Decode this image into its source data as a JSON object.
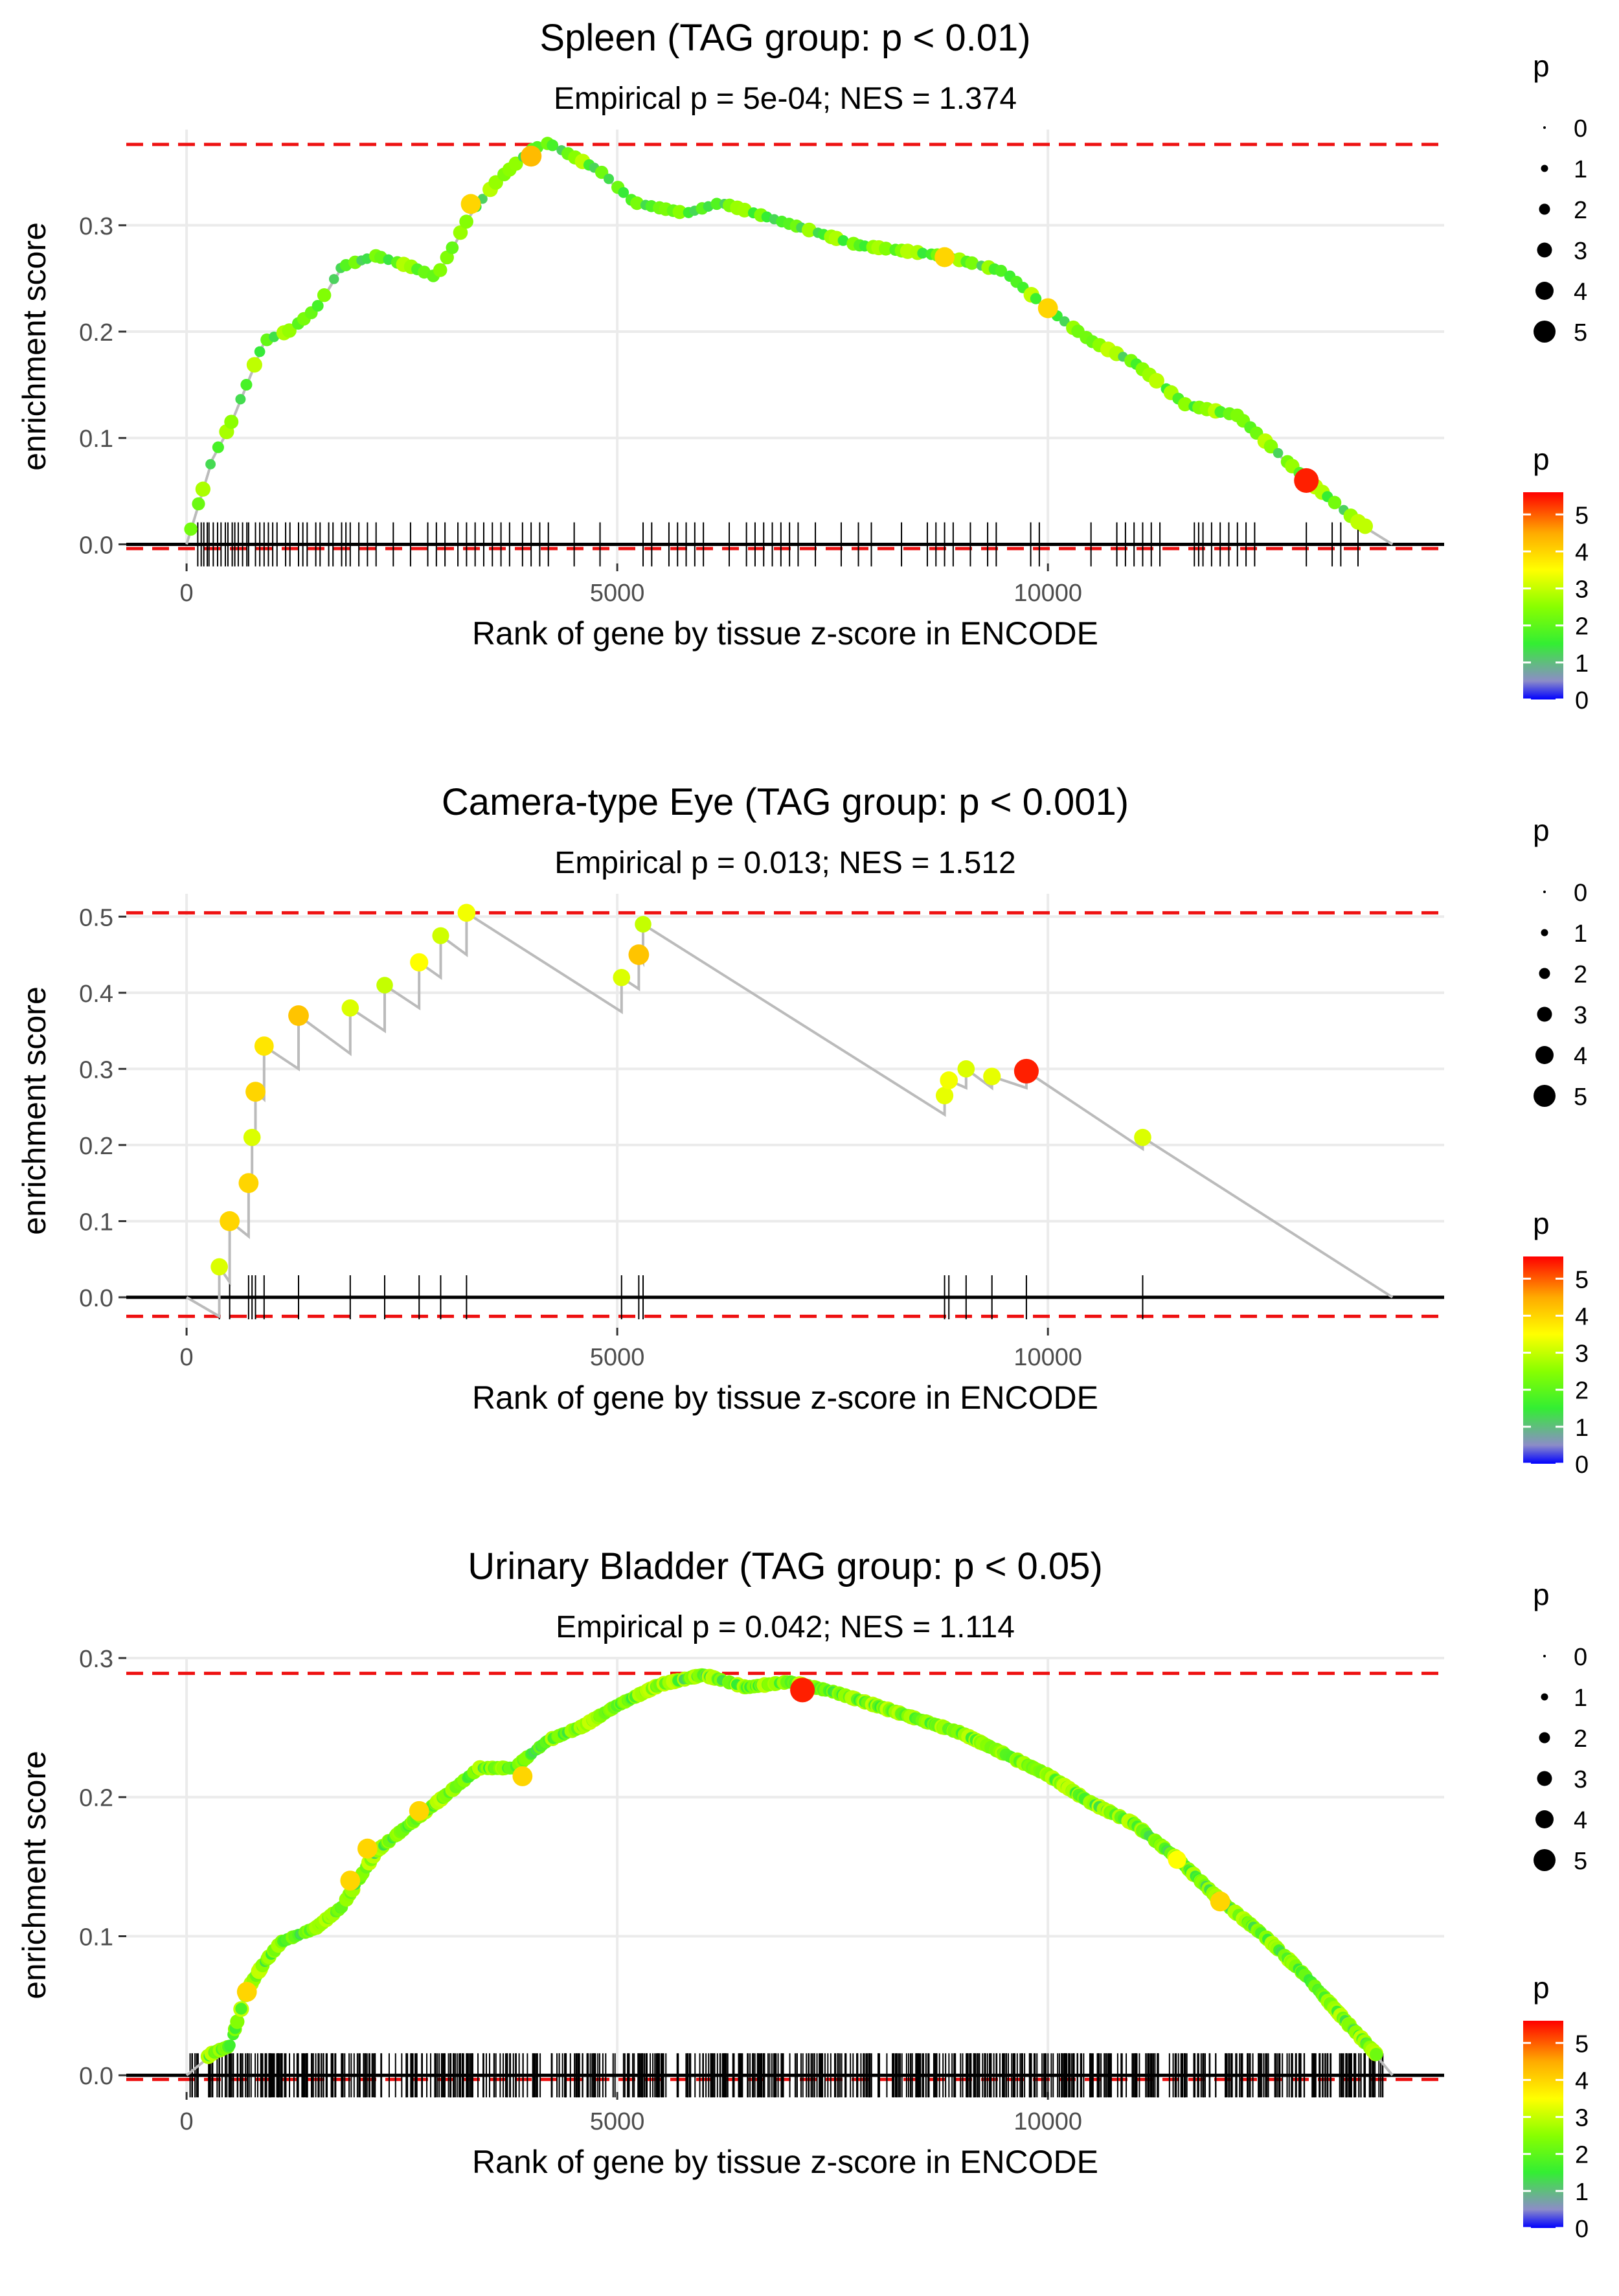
{
  "colors": {
    "line": "#bbbbbb",
    "dash": "#ee1111",
    "grid": "#ebebeb",
    "tick": "#000000",
    "gradient": [
      "#0000ff",
      "#8c8cc8",
      "#33ee33",
      "#88ff00",
      "#ffff00",
      "#ffaa00",
      "#ff0000"
    ]
  },
  "chart_data": [
    {
      "type": "scatter",
      "title": "Spleen (TAG group: p < 0.01)",
      "subtitle": "Empirical p = 5e-04; NES = 1.374",
      "xlabel": "Rank of gene by tissue z-score in ENCODE",
      "ylabel": "enrichment score",
      "xlim": [
        -700,
        14600
      ],
      "ylim": [
        -0.018,
        0.39
      ],
      "xticks": [
        0,
        5000,
        10000
      ],
      "xtick_labels": [
        "0",
        "5000",
        "10000"
      ],
      "yticks": [
        0.0,
        0.1,
        0.2,
        0.3
      ],
      "ytick_labels": [
        "0.0",
        "0.1",
        "0.2",
        "0.3"
      ],
      "max_es": 0.376,
      "min_es": -0.004,
      "n_genes": 14000,
      "curve": [
        [
          0,
          0
        ],
        [
          150,
          0.04
        ],
        [
          300,
          0.08
        ],
        [
          500,
          0.11
        ],
        [
          700,
          0.15
        ],
        [
          900,
          0.19
        ],
        [
          1200,
          0.2
        ],
        [
          1500,
          0.22
        ],
        [
          1800,
          0.26
        ],
        [
          2200,
          0.27
        ],
        [
          2600,
          0.26
        ],
        [
          2900,
          0.25
        ],
        [
          3300,
          0.31
        ],
        [
          3600,
          0.34
        ],
        [
          4000,
          0.37
        ],
        [
          4200,
          0.376
        ],
        [
          4800,
          0.35
        ],
        [
          5200,
          0.32
        ],
        [
          5800,
          0.31
        ],
        [
          6200,
          0.32
        ],
        [
          7000,
          0.3
        ],
        [
          7800,
          0.28
        ],
        [
          8800,
          0.27
        ],
        [
          9500,
          0.255
        ],
        [
          10000,
          0.22
        ],
        [
          10500,
          0.19
        ],
        [
          11000,
          0.17
        ],
        [
          11600,
          0.13
        ],
        [
          12200,
          0.12
        ],
        [
          13000,
          0.06
        ],
        [
          13600,
          0.02
        ],
        [
          14000,
          0.0
        ]
      ],
      "point_density": 2,
      "highlights": [
        [
          4000,
          0.365,
          4.3
        ],
        [
          3300,
          0.32,
          4.0
        ],
        [
          8800,
          0.27,
          4.0
        ],
        [
          10000,
          0.222,
          4.0
        ],
        [
          13000,
          0.06,
          5.4
        ]
      ],
      "ticks_x": [
        130,
        170,
        200,
        240,
        260,
        310,
        360,
        400,
        450,
        480,
        530,
        560,
        600,
        650,
        700,
        720,
        800,
        850,
        900,
        950,
        1000,
        1050,
        1150,
        1200,
        1300,
        1350,
        1400,
        1500,
        1550,
        1650,
        1700,
        1800,
        1850,
        1900,
        2000,
        2100,
        2200,
        2400,
        2600,
        2800,
        2900,
        3000,
        3150,
        3250,
        3350,
        3450,
        3550,
        3650,
        3750,
        3900,
        4000,
        4100,
        4200,
        4500,
        4800,
        5300,
        5400,
        5600,
        5700,
        5800,
        5900,
        6000,
        6300,
        6500,
        6600,
        6700,
        6800,
        6900,
        7000,
        7100,
        7300,
        7600,
        7800,
        7950,
        8300,
        8600,
        8700,
        8800,
        8900,
        9100,
        9300,
        9400,
        9800,
        9900,
        10500,
        10800,
        10900,
        11000,
        11100,
        11200,
        11300,
        11700,
        11750,
        11800,
        11900,
        12000,
        12100,
        12200,
        12300,
        12400,
        13000,
        13300,
        13400,
        13600
      ],
      "legend_size": {
        "title": "p",
        "labels": [
          "0",
          "1",
          "2",
          "3",
          "4",
          "5"
        ],
        "radii": [
          2,
          5.5,
          8.5,
          11.5,
          14,
          17
        ]
      },
      "legend_color": {
        "title": "p",
        "labels": [
          "5",
          "4",
          "3",
          "2",
          "1",
          "0"
        ],
        "max": 5.6
      }
    },
    {
      "type": "scatter",
      "title": "Camera-type Eye (TAG group: p < 0.001)",
      "subtitle": "Empirical p = 0.013; NES = 1.512",
      "xlabel": "Rank of gene by tissue z-score in ENCODE",
      "ylabel": "enrichment score",
      "xlim": [
        -700,
        14600
      ],
      "ylim": [
        -0.04,
        0.53
      ],
      "xticks": [
        0,
        5000,
        10000
      ],
      "xtick_labels": [
        "0",
        "5000",
        "10000"
      ],
      "yticks": [
        0.0,
        0.1,
        0.2,
        0.3,
        0.4,
        0.5
      ],
      "ytick_labels": [
        "0.0",
        "0.1",
        "0.2",
        "0.3",
        "0.4",
        "0.5"
      ],
      "max_es": 0.505,
      "min_es": -0.025,
      "n_genes": 14000,
      "curve": [
        [
          0,
          0
        ],
        [
          380,
          -0.025
        ],
        [
          380,
          0.04
        ],
        [
          500,
          0.02
        ],
        [
          500,
          0.1
        ],
        [
          720,
          0.08
        ],
        [
          720,
          0.15
        ],
        [
          760,
          0.14
        ],
        [
          760,
          0.21
        ],
        [
          800,
          0.2
        ],
        [
          800,
          0.27
        ],
        [
          900,
          0.26
        ],
        [
          900,
          0.33
        ],
        [
          1300,
          0.3
        ],
        [
          1300,
          0.37
        ],
        [
          1900,
          0.32
        ],
        [
          1900,
          0.38
        ],
        [
          2300,
          0.35
        ],
        [
          2300,
          0.41
        ],
        [
          2700,
          0.38
        ],
        [
          2700,
          0.44
        ],
        [
          2950,
          0.42
        ],
        [
          2950,
          0.475
        ],
        [
          3250,
          0.45
        ],
        [
          3250,
          0.505
        ],
        [
          5050,
          0.375
        ],
        [
          5050,
          0.42
        ],
        [
          5250,
          0.405
        ],
        [
          5250,
          0.45
        ],
        [
          5300,
          0.44
        ],
        [
          5300,
          0.49
        ],
        [
          8800,
          0.24
        ],
        [
          8800,
          0.265
        ],
        [
          8850,
          0.26
        ],
        [
          8850,
          0.285
        ],
        [
          9050,
          0.275
        ],
        [
          9050,
          0.3
        ],
        [
          9350,
          0.275
        ],
        [
          9350,
          0.29
        ],
        [
          9750,
          0.275
        ],
        [
          9750,
          0.297
        ],
        [
          11100,
          0.195
        ],
        [
          11100,
          0.21
        ],
        [
          14000,
          0.0
        ]
      ],
      "point_density": 0,
      "points": [
        [
          380,
          0.04,
          3.2
        ],
        [
          500,
          0.1,
          4.0
        ],
        [
          720,
          0.15,
          4.0
        ],
        [
          760,
          0.21,
          3.2
        ],
        [
          800,
          0.27,
          4.0
        ],
        [
          900,
          0.33,
          3.8
        ],
        [
          1300,
          0.37,
          4.2
        ],
        [
          1900,
          0.38,
          3.2
        ],
        [
          2300,
          0.41,
          3.0
        ],
        [
          2700,
          0.44,
          3.5
        ],
        [
          2950,
          0.475,
          3.1
        ],
        [
          3250,
          0.505,
          3.4
        ],
        [
          5050,
          0.42,
          3.2
        ],
        [
          5250,
          0.45,
          4.2
        ],
        [
          5300,
          0.49,
          3.0
        ],
        [
          8800,
          0.265,
          3.3
        ],
        [
          8850,
          0.285,
          3.4
        ],
        [
          9050,
          0.3,
          3.2
        ],
        [
          9350,
          0.29,
          3.3
        ],
        [
          9750,
          0.297,
          5.4
        ],
        [
          11100,
          0.21,
          3.2
        ]
      ],
      "ticks_x": [
        380,
        500,
        720,
        760,
        800,
        900,
        1300,
        1900,
        2300,
        2700,
        2950,
        3250,
        5050,
        5250,
        5300,
        8800,
        8850,
        9050,
        9350,
        9750,
        11100
      ],
      "legend_size": {
        "title": "p",
        "labels": [
          "0",
          "1",
          "2",
          "3",
          "4",
          "5"
        ],
        "radii": [
          2,
          5.5,
          8.5,
          11.5,
          14,
          17
        ]
      },
      "legend_color": {
        "title": "p",
        "labels": [
          "5",
          "4",
          "3",
          "2",
          "1",
          "0"
        ],
        "max": 5.6
      }
    },
    {
      "type": "scatter",
      "title": "Urinary Bladder (TAG group: p < 0.05)",
      "subtitle": "Empirical p = 0.042; NES = 1.114",
      "xlabel": "Rank of gene by tissue z-score in ENCODE",
      "ylabel": "enrichment score",
      "xlim": [
        -700,
        14600
      ],
      "ylim": [
        -0.012,
        0.3
      ],
      "xticks": [
        0,
        5000,
        10000
      ],
      "xtick_labels": [
        "0",
        "5000",
        "10000"
      ],
      "yticks": [
        0.0,
        0.1,
        0.2,
        0.3
      ],
      "ytick_labels": [
        "0.0",
        "0.1",
        "0.2",
        "0.3"
      ],
      "max_es": 0.289,
      "min_es": -0.003,
      "n_genes": 14000,
      "curve": [
        [
          0,
          0
        ],
        [
          300,
          0.015
        ],
        [
          500,
          0.02
        ],
        [
          700,
          0.06
        ],
        [
          900,
          0.08
        ],
        [
          1100,
          0.095
        ],
        [
          1500,
          0.105
        ],
        [
          1800,
          0.12
        ],
        [
          2200,
          0.16
        ],
        [
          2600,
          0.18
        ],
        [
          3000,
          0.2
        ],
        [
          3400,
          0.22
        ],
        [
          3800,
          0.22
        ],
        [
          4200,
          0.24
        ],
        [
          4600,
          0.25
        ],
        [
          5000,
          0.265
        ],
        [
          5500,
          0.28
        ],
        [
          6000,
          0.287
        ],
        [
          6500,
          0.278
        ],
        [
          7000,
          0.282
        ],
        [
          7500,
          0.275
        ],
        [
          8000,
          0.265
        ],
        [
          8500,
          0.255
        ],
        [
          9000,
          0.245
        ],
        [
          9500,
          0.23
        ],
        [
          10000,
          0.215
        ],
        [
          10500,
          0.195
        ],
        [
          11000,
          0.18
        ],
        [
          11500,
          0.155
        ],
        [
          12000,
          0.125
        ],
        [
          12500,
          0.1
        ],
        [
          13000,
          0.07
        ],
        [
          13500,
          0.035
        ],
        [
          13800,
          0.015
        ],
        [
          14000,
          0.0
        ]
      ],
      "point_density": 10,
      "highlights": [
        [
          700,
          0.06,
          4.0
        ],
        [
          1900,
          0.14,
          4.0
        ],
        [
          2100,
          0.163,
          4.0
        ],
        [
          2700,
          0.19,
          4.0
        ],
        [
          3900,
          0.215,
          4.0
        ],
        [
          7150,
          0.277,
          5.4
        ],
        [
          11500,
          0.155,
          3.5
        ],
        [
          12000,
          0.125,
          4.0
        ]
      ],
      "ticks_density": 700,
      "ticks_x": [],
      "legend_size": {
        "title": "p",
        "labels": [
          "0",
          "1",
          "2",
          "3",
          "4",
          "5"
        ],
        "radii": [
          2,
          5.5,
          8.5,
          11.5,
          14,
          17
        ]
      },
      "legend_color": {
        "title": "p",
        "labels": [
          "5",
          "4",
          "3",
          "2",
          "1",
          "0"
        ],
        "max": 5.6
      }
    }
  ]
}
